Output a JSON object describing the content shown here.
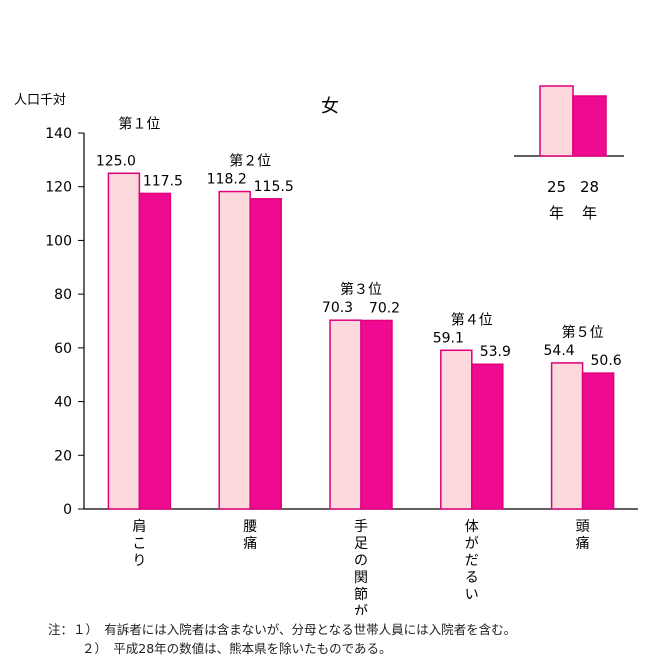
{
  "chart_data": {
    "type": "bar",
    "title": "女",
    "ylabel": "人口千対",
    "ylim": [
      0,
      140
    ],
    "yticks": [
      0,
      20,
      40,
      60,
      80,
      100,
      120,
      140
    ],
    "grid": false,
    "legend_position": "top-right",
    "categories": [
      "肩こり",
      "腰痛",
      "手足の関節が痛む",
      "体がだるい",
      "頭痛"
    ],
    "ranks": [
      "第１位",
      "第２位",
      "第３位",
      "第４位",
      "第５位"
    ],
    "series": [
      {
        "name": "25年",
        "color": "#fcd9dc",
        "stroke": "#e0007a",
        "values": [
          125.0,
          118.2,
          70.3,
          59.1,
          54.4
        ]
      },
      {
        "name": "28年",
        "color": "#ee0a91",
        "stroke": "#e0007a",
        "values": [
          117.5,
          115.5,
          70.2,
          53.9,
          50.6
        ]
      }
    ]
  },
  "notes": {
    "line1": "注：１）　有訴者には入院者は含まないが、分母となる世帯人員には入院者を含む。",
    "line2": "２）　平成28年の数値は、熊本県を除いたものである。"
  }
}
